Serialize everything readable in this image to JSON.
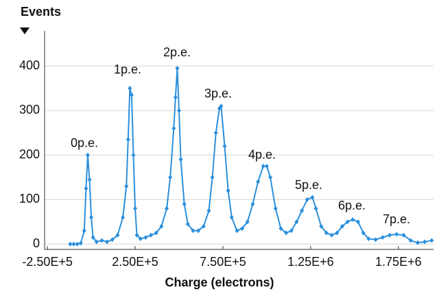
{
  "chart_data": {
    "type": "line",
    "y_label": "Events",
    "x_label": "Charge (electrons)",
    "annotations": [
      "0p.e.",
      "1p.e.",
      "2p.e.",
      "3p.e.",
      "4p.e.",
      "5p.e.",
      "6p.e.",
      "7p.e."
    ],
    "xlim": [
      -266000,
      1950000
    ],
    "ylim": [
      -12,
      479
    ],
    "xticks": [
      {
        "value": -250000,
        "label": "-2.50E+5"
      },
      {
        "value": 250000,
        "label": "2.50E+5"
      },
      {
        "value": 750000,
        "label": "7.50E+5"
      },
      {
        "value": 1250000,
        "label": "1.25E+6"
      },
      {
        "value": 1750000,
        "label": "1.75E+6"
      }
    ],
    "yticks": [
      0,
      100,
      200,
      300,
      400
    ],
    "grid": true,
    "series": [
      {
        "color": "#2a8fdc",
        "x": [
          -120000,
          -100000,
          -80000,
          -60000,
          -40000,
          -30000,
          -20000,
          -10000,
          0,
          10000,
          30000,
          60000,
          90000,
          120000,
          150000,
          180000,
          200000,
          210000,
          220000,
          230000,
          240000,
          250000,
          260000,
          280000,
          310000,
          340000,
          370000,
          400000,
          430000,
          450000,
          470000,
          480000,
          490000,
          500000,
          510000,
          530000,
          550000,
          580000,
          610000,
          640000,
          670000,
          690000,
          710000,
          730000,
          740000,
          760000,
          780000,
          800000,
          830000,
          860000,
          890000,
          920000,
          950000,
          980000,
          1000000,
          1020000,
          1050000,
          1080000,
          1110000,
          1140000,
          1170000,
          1200000,
          1230000,
          1260000,
          1280000,
          1310000,
          1340000,
          1370000,
          1400000,
          1430000,
          1460000,
          1490000,
          1520000,
          1550000,
          1580000,
          1620000,
          1660000,
          1700000,
          1740000,
          1780000,
          1820000,
          1860000,
          1900000,
          1940000
        ],
        "values": [
          0,
          0,
          0,
          2,
          30,
          125,
          200,
          145,
          60,
          15,
          5,
          8,
          5,
          10,
          20,
          60,
          130,
          235,
          350,
          335,
          200,
          80,
          20,
          12,
          15,
          20,
          25,
          40,
          80,
          150,
          260,
          330,
          395,
          300,
          190,
          90,
          45,
          30,
          30,
          40,
          75,
          150,
          250,
          305,
          310,
          220,
          120,
          60,
          30,
          35,
          50,
          90,
          140,
          175,
          175,
          150,
          80,
          35,
          25,
          30,
          50,
          75,
          100,
          105,
          80,
          40,
          25,
          20,
          25,
          40,
          50,
          55,
          50,
          25,
          12,
          10,
          15,
          20,
          22,
          20,
          8,
          3,
          5,
          8
        ]
      }
    ]
  }
}
